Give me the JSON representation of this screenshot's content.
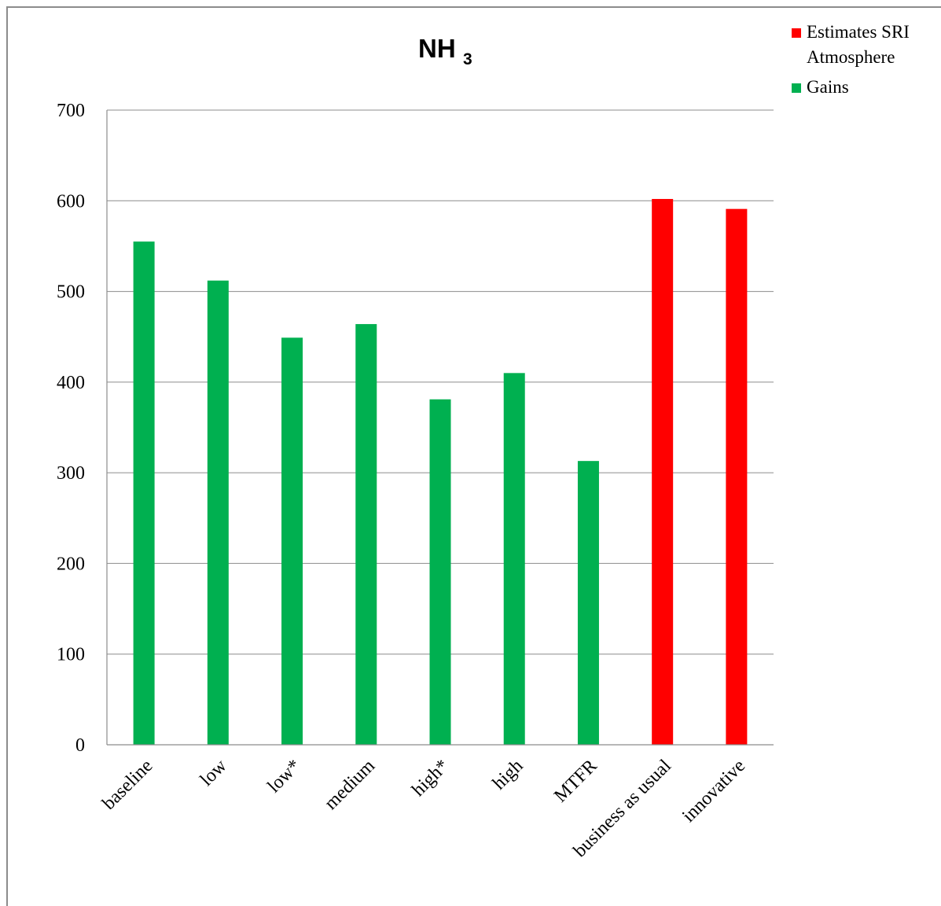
{
  "chart_data": {
    "type": "bar",
    "title": "NH",
    "title_subscript": "3",
    "xlabel": "",
    "ylabel": "",
    "ylim": [
      0,
      700
    ],
    "yticks": [
      0,
      100,
      200,
      300,
      400,
      500,
      600,
      700
    ],
    "grid": true,
    "legend_position": "top-right",
    "categories": [
      "baseline",
      "low",
      "low*",
      "medium",
      "high*",
      "high",
      "MTFR",
      "business as usual",
      "innovative"
    ],
    "series": [
      {
        "name": "Gains",
        "color": "#00b050",
        "values": [
          555,
          512,
          449,
          464,
          381,
          410,
          313,
          null,
          null
        ]
      },
      {
        "name": "Estimates SRI Atmosphere",
        "color": "#ff0000",
        "values": [
          null,
          null,
          null,
          null,
          null,
          null,
          null,
          602,
          591
        ]
      }
    ],
    "legend": [
      {
        "label_lines": [
          "Estimates SRI",
          "Atmosphere"
        ],
        "color": "#ff0000"
      },
      {
        "label_lines": [
          "Gains"
        ],
        "color": "#00b050"
      }
    ]
  }
}
